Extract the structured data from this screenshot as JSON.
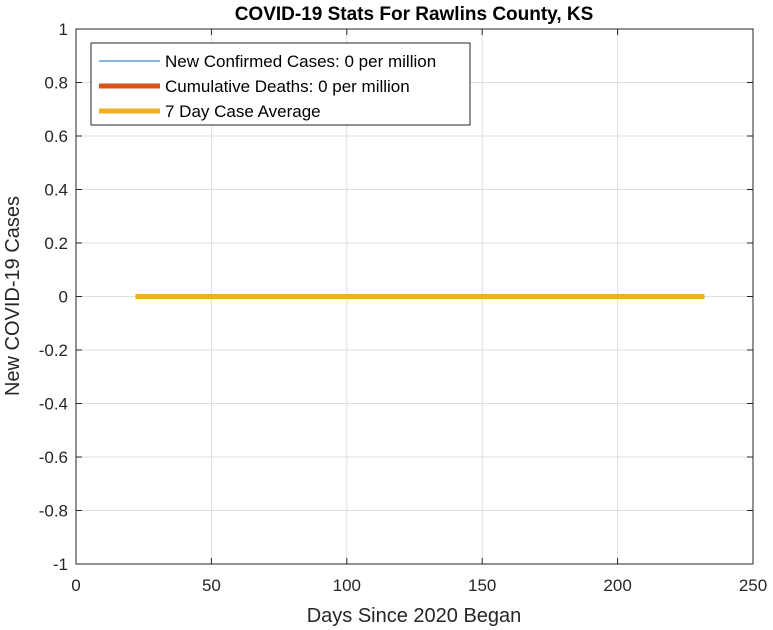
{
  "chart_data": {
    "type": "line",
    "title": "COVID-19 Stats For Rawlins County, KS",
    "xlabel": "Days Since 2020 Began",
    "ylabel": "New COVID-19 Cases",
    "xlim": [
      0,
      250
    ],
    "ylim": [
      -1,
      1
    ],
    "xticks": [
      0,
      50,
      100,
      150,
      200,
      250
    ],
    "xtick_labels": [
      "0",
      "50",
      "100",
      "150",
      "200",
      "250"
    ],
    "yticks": [
      -1,
      -0.8,
      -0.6,
      -0.4,
      -0.2,
      0,
      0.2,
      0.4,
      0.6,
      0.8,
      1
    ],
    "ytick_labels": [
      "-1",
      "-0.8",
      "-0.6",
      "-0.4",
      "-0.2",
      "0",
      "0.2",
      "0.4",
      "0.6",
      "0.8",
      "1"
    ],
    "grid": true,
    "legend_position": "top-left",
    "series": [
      {
        "name": "New Confirmed Cases: 0 per million",
        "color": "#0072BD",
        "line": "thin",
        "x": [
          22,
          232
        ],
        "y": [
          0,
          0
        ]
      },
      {
        "name": "Cumulative Deaths: 0 per million",
        "color": "#D95319",
        "line": "thick",
        "x": [
          22,
          232
        ],
        "y": [
          0,
          0
        ]
      },
      {
        "name": "7 Day Case Average",
        "color": "#EDB120",
        "line": "thick",
        "x": [
          22,
          232
        ],
        "y": [
          0,
          0
        ]
      }
    ]
  }
}
